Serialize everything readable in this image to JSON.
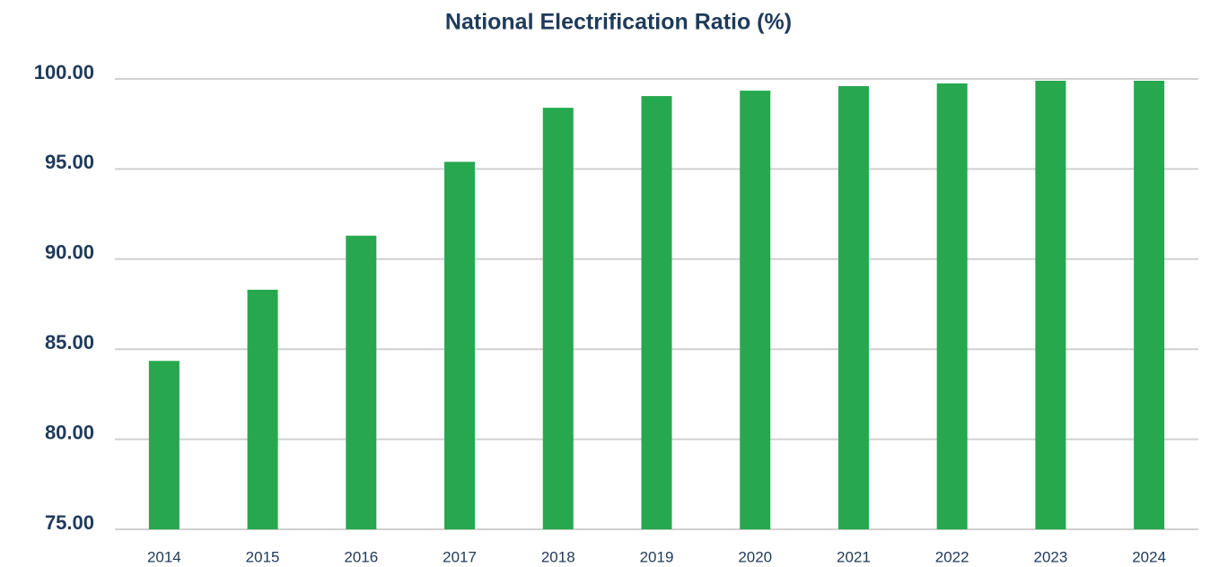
{
  "chart_data": {
    "type": "bar",
    "title": "National Electrification Ratio (%)",
    "categories": [
      "2014",
      "2015",
      "2016",
      "2017",
      "2018",
      "2019",
      "2020",
      "2021",
      "2022",
      "2023",
      "2024"
    ],
    "values": [
      84.35,
      88.3,
      91.3,
      95.4,
      98.4,
      99.05,
      99.35,
      99.6,
      99.75,
      99.9,
      99.9
    ],
    "color": "#27a84f",
    "ylim": [
      75,
      100
    ],
    "yticks": [
      {
        "value": 75,
        "label": "75.00"
      },
      {
        "value": 80,
        "label": "80.00"
      },
      {
        "value": 85,
        "label": "85.00"
      },
      {
        "value": 90,
        "label": "90.00"
      },
      {
        "value": 95,
        "label": "95.00"
      },
      {
        "value": 100,
        "label": "100.00"
      }
    ],
    "grid": true
  }
}
